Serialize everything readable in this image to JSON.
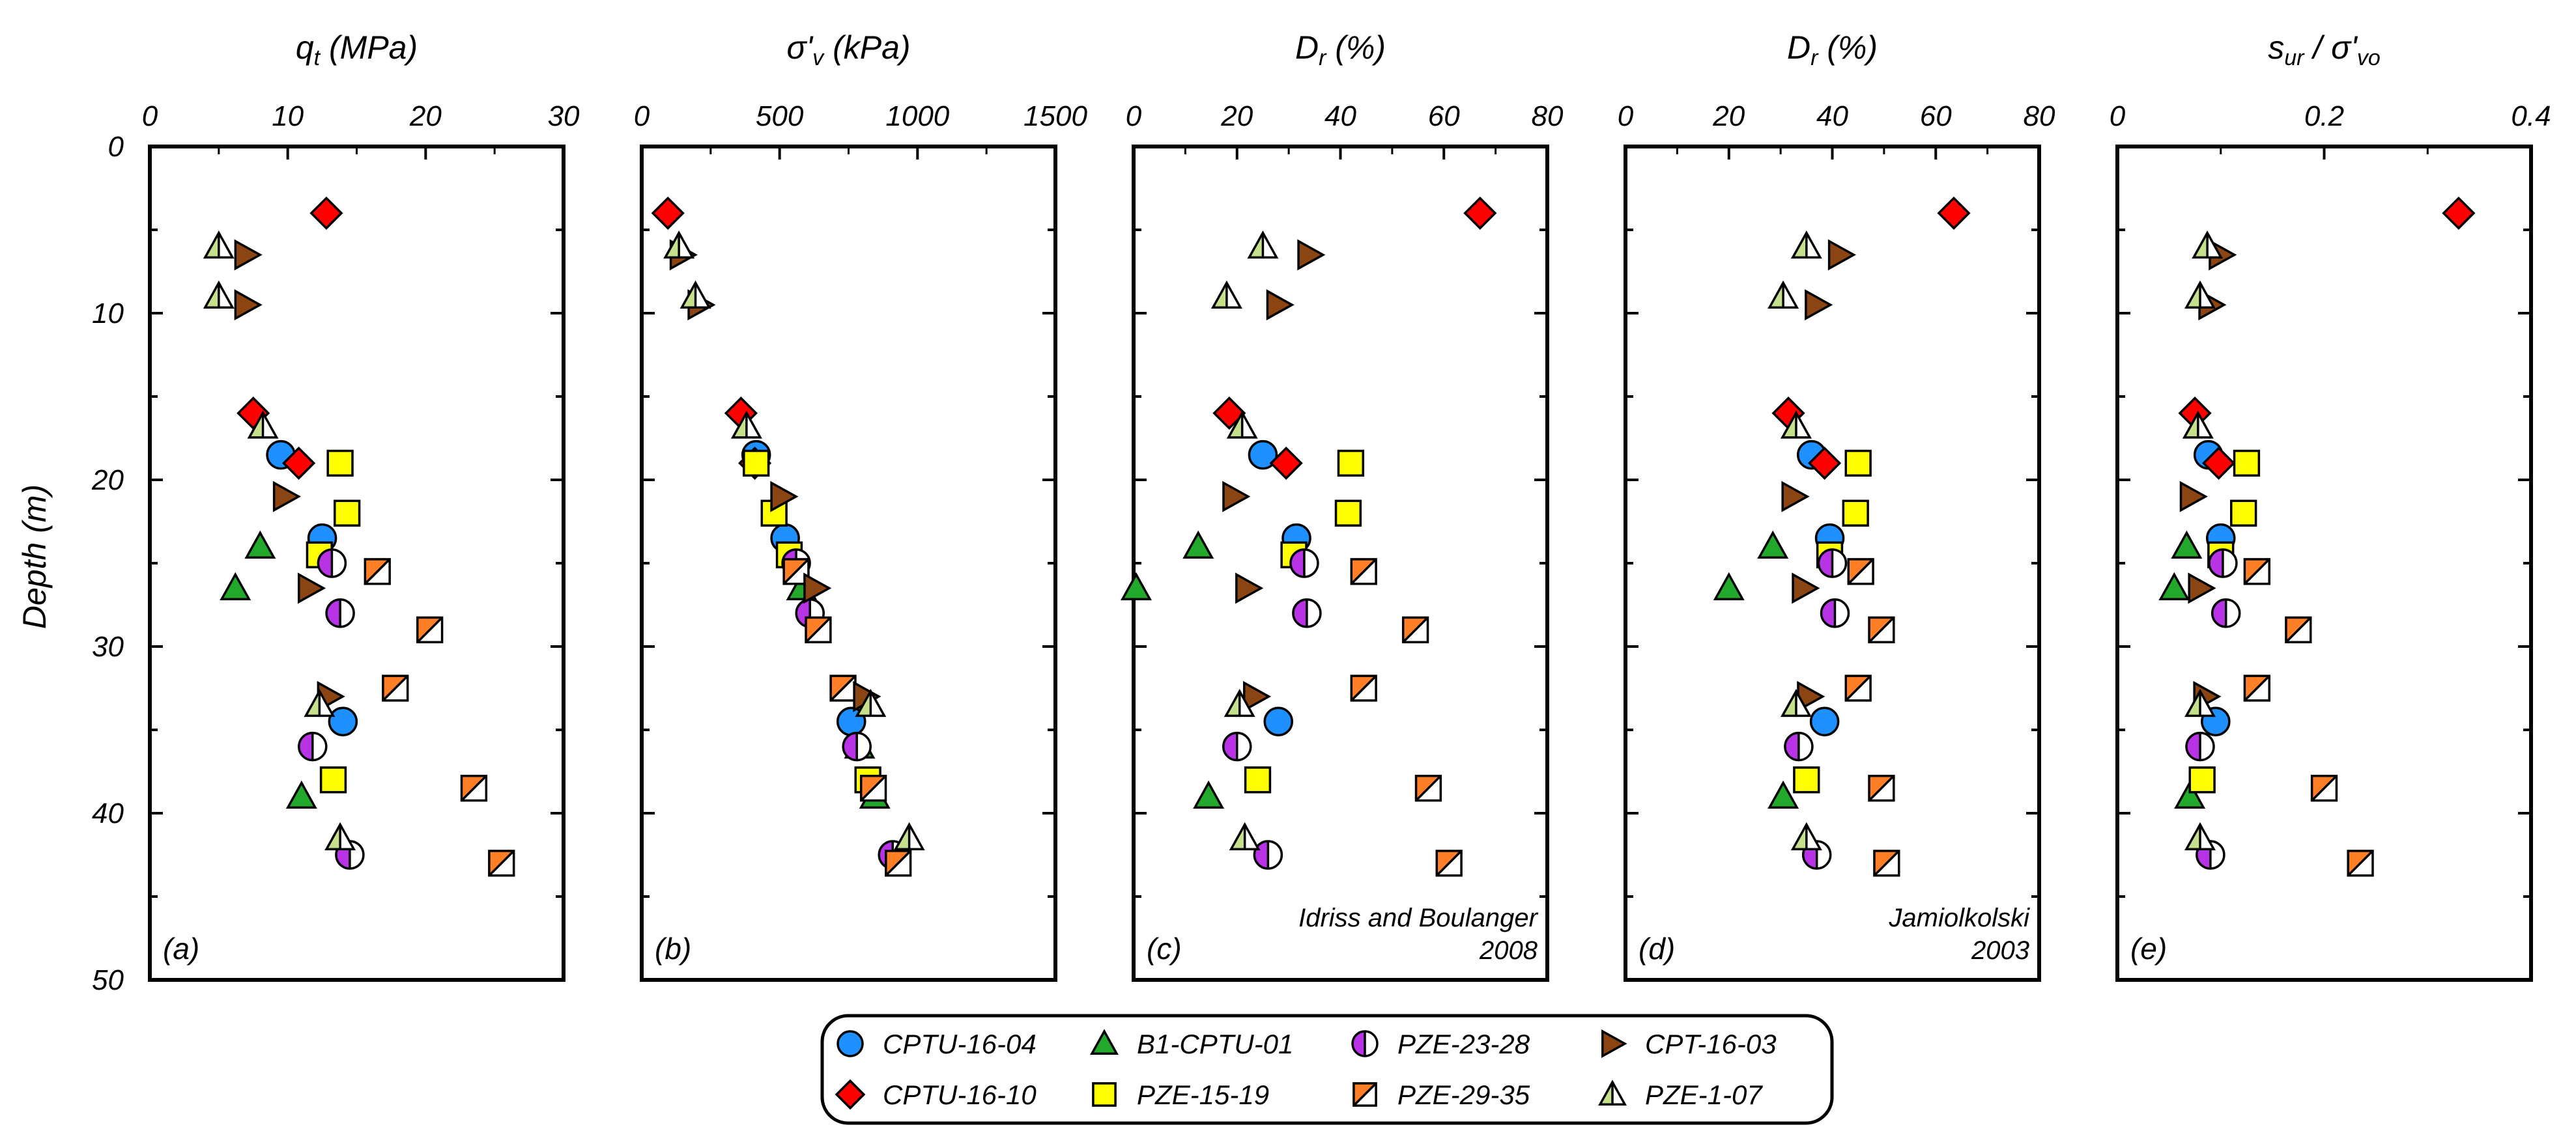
{
  "figure": {
    "y_axis_label": "Depth (m)",
    "y_range": [
      0,
      50
    ],
    "y_ticks": [
      "0",
      "10",
      "20",
      "30",
      "40",
      "50"
    ]
  },
  "series_styles": {
    "CPTU-16-04": {
      "marker": "circle",
      "fill": "#1e90ff"
    },
    "CPTU-16-10": {
      "marker": "diamond",
      "fill": "#ff0000"
    },
    "B1-CPTU-01": {
      "marker": "triangle",
      "fill": "#22a82a"
    },
    "PZE-15-19": {
      "marker": "square",
      "fill": "#ffff00"
    },
    "PZE-23-28": {
      "marker": "half-circle",
      "fill": "#b833e6"
    },
    "PZE-29-35": {
      "marker": "half-square",
      "fill": "#ff7f27"
    },
    "CPT-16-03": {
      "marker": "right-triangle",
      "fill": "#8b4513"
    },
    "PZE-1-07": {
      "marker": "half-triangle",
      "fill": "#c5e08a"
    }
  },
  "legend": {
    "items": [
      "CPTU-16-04",
      "B1-CPTU-01",
      "PZE-23-28",
      "CPT-16-03",
      "CPTU-16-10",
      "PZE-15-19",
      "PZE-29-35",
      "PZE-1-07"
    ]
  },
  "chart_data": [
    {
      "type": "scatter",
      "id": "a",
      "letter": "(a)",
      "title_parts": [
        [
          "q",
          ""
        ],
        [
          "t",
          "sub"
        ],
        [
          " (MPa)",
          ""
        ]
      ],
      "xlim": [
        0,
        30
      ],
      "x_ticks": [
        "0",
        "10",
        "20",
        "30"
      ],
      "ylim": [
        50,
        0
      ],
      "annotation": [],
      "series": [
        {
          "name": "CPTU-16-04",
          "points": [
            [
              9.5,
              18.5
            ],
            [
              12.5,
              23.5
            ],
            [
              14,
              34.5
            ]
          ]
        },
        {
          "name": "CPTU-16-10",
          "points": [
            [
              12.8,
              4
            ],
            [
              7.5,
              16
            ],
            [
              10.8,
              19
            ]
          ]
        },
        {
          "name": "B1-CPTU-01",
          "points": [
            [
              8,
              24
            ],
            [
              6.2,
              26.5
            ],
            [
              11,
              39
            ]
          ]
        },
        {
          "name": "PZE-15-19",
          "points": [
            [
              13.8,
              19
            ],
            [
              14.3,
              22
            ],
            [
              12.3,
              24.5
            ],
            [
              13.3,
              38
            ]
          ]
        },
        {
          "name": "PZE-23-28",
          "points": [
            [
              13.2,
              25
            ],
            [
              13.8,
              28
            ],
            [
              11.8,
              36
            ],
            [
              14.5,
              42.5
            ]
          ]
        },
        {
          "name": "PZE-29-35",
          "points": [
            [
              16.5,
              25.5
            ],
            [
              20.3,
              29
            ],
            [
              17.8,
              32.5
            ],
            [
              23.5,
              38.5
            ],
            [
              25.5,
              43
            ]
          ]
        },
        {
          "name": "CPT-16-03",
          "points": [
            [
              7,
              6.5
            ],
            [
              7,
              9.5
            ],
            [
              9.8,
              21
            ],
            [
              11.6,
              26.5
            ],
            [
              13,
              33
            ]
          ]
        },
        {
          "name": "PZE-1-07",
          "points": [
            [
              5,
              6
            ],
            [
              5,
              9
            ],
            [
              8.2,
              16.8
            ],
            [
              12.3,
              33.5
            ],
            [
              13.8,
              41.5
            ]
          ]
        }
      ]
    },
    {
      "type": "scatter",
      "id": "b",
      "letter": "(b)",
      "title_parts": [
        [
          "σ'",
          ""
        ],
        [
          "v",
          "sub"
        ],
        [
          " (kPa)",
          ""
        ]
      ],
      "xlim": [
        0,
        1500
      ],
      "x_ticks": [
        "0",
        "500",
        "1000",
        "1500"
      ],
      "ylim": [
        50,
        0
      ],
      "annotation": [],
      "series": [
        {
          "name": "CPTU-16-04",
          "points": [
            [
              415,
              18.5
            ],
            [
              520,
              23.5
            ],
            [
              760,
              34.5
            ]
          ]
        },
        {
          "name": "CPTU-16-10",
          "points": [
            [
              95,
              4
            ],
            [
              360,
              16
            ],
            [
              410,
              19
            ]
          ]
        },
        {
          "name": "B1-CPTU-01",
          "points": [
            [
              580,
              26.5
            ],
            [
              845,
              39
            ],
            [
              790,
              36
            ]
          ]
        },
        {
          "name": "PZE-15-19",
          "points": [
            [
              415,
              19
            ],
            [
              480,
              22
            ],
            [
              535,
              24.5
            ],
            [
              820,
              38
            ]
          ]
        },
        {
          "name": "PZE-23-28",
          "points": [
            [
              560,
              25
            ],
            [
              610,
              28
            ],
            [
              780,
              36
            ],
            [
              910,
              42.5
            ]
          ]
        },
        {
          "name": "PZE-29-35",
          "points": [
            [
              560,
              25.5
            ],
            [
              640,
              29
            ],
            [
              730,
              32.5
            ],
            [
              840,
              38.5
            ],
            [
              930,
              43
            ]
          ]
        },
        {
          "name": "CPT-16-03",
          "points": [
            [
              145,
              6.5
            ],
            [
              210,
              9.5
            ],
            [
              510,
              21
            ],
            [
              630,
              26.5
            ],
            [
              810,
              33
            ]
          ]
        },
        {
          "name": "PZE-1-07",
          "points": [
            [
              135,
              6
            ],
            [
              195,
              9
            ],
            [
              380,
              16.8
            ],
            [
              830,
              33.5
            ],
            [
              970,
              41.5
            ]
          ]
        }
      ]
    },
    {
      "type": "scatter",
      "id": "c",
      "letter": "(c)",
      "title_parts": [
        [
          "D",
          ""
        ],
        [
          "r",
          "sub"
        ],
        [
          " (%)",
          ""
        ]
      ],
      "xlim": [
        0,
        80
      ],
      "x_ticks": [
        "0",
        "20",
        "40",
        "60",
        "80"
      ],
      "ylim": [
        50,
        0
      ],
      "annotation": [
        "Idriss and Boulanger",
        "2008"
      ],
      "series": [
        {
          "name": "CPTU-16-04",
          "points": [
            [
              25,
              18.5
            ],
            [
              31.5,
              23.5
            ],
            [
              28,
              34.5
            ]
          ]
        },
        {
          "name": "CPTU-16-10",
          "points": [
            [
              67,
              4
            ],
            [
              18.5,
              16
            ],
            [
              29.5,
              19
            ]
          ]
        },
        {
          "name": "B1-CPTU-01",
          "points": [
            [
              12.5,
              24
            ],
            [
              0.5,
              26.5
            ],
            [
              14.5,
              39
            ]
          ]
        },
        {
          "name": "PZE-15-19",
          "points": [
            [
              42,
              19
            ],
            [
              41.5,
              22
            ],
            [
              31,
              24.5
            ],
            [
              24,
              38
            ]
          ]
        },
        {
          "name": "PZE-23-28",
          "points": [
            [
              33,
              25
            ],
            [
              33.5,
              28
            ],
            [
              20,
              36
            ],
            [
              26,
              42.5
            ]
          ]
        },
        {
          "name": "PZE-29-35",
          "points": [
            [
              44.5,
              25.5
            ],
            [
              54.5,
              29
            ],
            [
              44.5,
              32.5
            ],
            [
              57,
              38.5
            ],
            [
              61,
              43
            ]
          ]
        },
        {
          "name": "CPT-16-03",
          "points": [
            [
              34,
              6.5
            ],
            [
              28,
              9.5
            ],
            [
              19.5,
              21
            ],
            [
              22,
              26.5
            ],
            [
              23.5,
              33
            ]
          ]
        },
        {
          "name": "PZE-1-07",
          "points": [
            [
              25,
              6
            ],
            [
              18,
              9
            ],
            [
              21,
              16.8
            ],
            [
              20.5,
              33.5
            ],
            [
              21.5,
              41.5
            ]
          ]
        }
      ]
    },
    {
      "type": "scatter",
      "id": "d",
      "letter": "(d)",
      "title_parts": [
        [
          "D",
          ""
        ],
        [
          "r",
          "sub"
        ],
        [
          " (%)",
          ""
        ]
      ],
      "xlim": [
        0,
        80
      ],
      "x_ticks": [
        "0",
        "20",
        "40",
        "60",
        "80"
      ],
      "ylim": [
        50,
        0
      ],
      "annotation": [
        "Jamiolkolski",
        "2003"
      ],
      "series": [
        {
          "name": "CPTU-16-04",
          "points": [
            [
              36,
              18.5
            ],
            [
              39.5,
              23.5
            ],
            [
              38.5,
              34.5
            ]
          ]
        },
        {
          "name": "CPTU-16-10",
          "points": [
            [
              63.5,
              4
            ],
            [
              31.5,
              16
            ],
            [
              38.5,
              19
            ]
          ]
        },
        {
          "name": "B1-CPTU-01",
          "points": [
            [
              28.5,
              24
            ],
            [
              20,
              26.5
            ],
            [
              30.5,
              39
            ]
          ]
        },
        {
          "name": "PZE-15-19",
          "points": [
            [
              45,
              19
            ],
            [
              44.5,
              22
            ],
            [
              39.5,
              24.5
            ],
            [
              35,
              38
            ]
          ]
        },
        {
          "name": "PZE-23-28",
          "points": [
            [
              40,
              25
            ],
            [
              40.5,
              28
            ],
            [
              33.5,
              36
            ],
            [
              37,
              42.5
            ]
          ]
        },
        {
          "name": "PZE-29-35",
          "points": [
            [
              45.5,
              25.5
            ],
            [
              49.5,
              29
            ],
            [
              45,
              32.5
            ],
            [
              49.5,
              38.5
            ],
            [
              50.5,
              43
            ]
          ]
        },
        {
          "name": "CPT-16-03",
          "points": [
            [
              41.5,
              6.5
            ],
            [
              37,
              9.5
            ],
            [
              32.5,
              21
            ],
            [
              34.5,
              26.5
            ],
            [
              35.5,
              33
            ]
          ]
        },
        {
          "name": "PZE-1-07",
          "points": [
            [
              35,
              6
            ],
            [
              30.5,
              9
            ],
            [
              33,
              16.8
            ],
            [
              33,
              33.5
            ],
            [
              35,
              41.5
            ]
          ]
        }
      ]
    },
    {
      "type": "scatter",
      "id": "e",
      "letter": "(e)",
      "title_parts": [
        [
          "s",
          ""
        ],
        [
          "ur",
          "sub"
        ],
        [
          " / σ'",
          ""
        ],
        [
          "vo",
          "sub"
        ]
      ],
      "xlim": [
        0,
        0.4
      ],
      "x_ticks": [
        "0",
        "0.2",
        "0.4"
      ],
      "ylim": [
        50,
        0
      ],
      "annotation": [],
      "series": [
        {
          "name": "CPTU-16-04",
          "points": [
            [
              0.088,
              18.5
            ],
            [
              0.1,
              23.5
            ],
            [
              0.095,
              34.5
            ]
          ]
        },
        {
          "name": "CPTU-16-10",
          "points": [
            [
              0.33,
              4
            ],
            [
              0.075,
              16
            ],
            [
              0.098,
              19
            ]
          ]
        },
        {
          "name": "B1-CPTU-01",
          "points": [
            [
              0.067,
              24
            ],
            [
              0.055,
              26.5
            ],
            [
              0.07,
              39
            ]
          ]
        },
        {
          "name": "PZE-15-19",
          "points": [
            [
              0.125,
              19
            ],
            [
              0.122,
              22
            ],
            [
              0.1,
              24.5
            ],
            [
              0.082,
              38
            ]
          ]
        },
        {
          "name": "PZE-23-28",
          "points": [
            [
              0.102,
              25
            ],
            [
              0.105,
              28
            ],
            [
              0.08,
              36
            ],
            [
              0.09,
              42.5
            ]
          ]
        },
        {
          "name": "PZE-29-35",
          "points": [
            [
              0.135,
              25.5
            ],
            [
              0.175,
              29
            ],
            [
              0.135,
              32.5
            ],
            [
              0.2,
              38.5
            ],
            [
              0.235,
              43
            ]
          ]
        },
        {
          "name": "CPT-16-03",
          "points": [
            [
              0.1,
              6.5
            ],
            [
              0.09,
              9.5
            ],
            [
              0.072,
              21
            ],
            [
              0.08,
              26.5
            ],
            [
              0.085,
              33
            ]
          ]
        },
        {
          "name": "PZE-1-07",
          "points": [
            [
              0.087,
              6
            ],
            [
              0.08,
              9
            ],
            [
              0.078,
              16.8
            ],
            [
              0.08,
              33.5
            ],
            [
              0.08,
              41.5
            ]
          ]
        }
      ]
    }
  ]
}
